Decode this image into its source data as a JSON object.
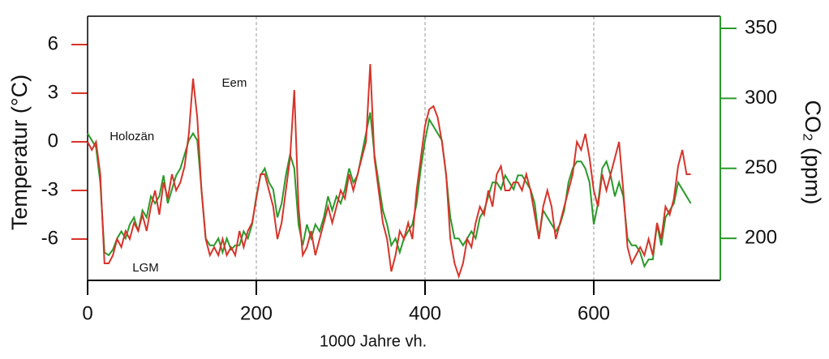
{
  "chart_data": {
    "type": "line",
    "xlabel": "1000 Jahre vh.",
    "ylabel": "Temperatur (°C)",
    "y2label": "CO₂ (ppm)",
    "annotations": [
      {
        "text": "Holozän",
        "x": 5,
        "y": 0.3
      },
      {
        "text": "Eem",
        "x": 138,
        "y": 3.6
      },
      {
        "text": "LGM",
        "x": 32,
        "y": -7.8
      }
    ],
    "xlim": [
      0,
      750
    ],
    "xticks": [
      0,
      200,
      400,
      600
    ],
    "ylim": [
      -8.55,
      7.75
    ],
    "yticks": [
      6,
      3,
      0,
      -3,
      -6
    ],
    "y2lim": [
      170,
      358.7
    ],
    "y2ticks": [
      350,
      300,
      250,
      200
    ],
    "grid": true,
    "x": [
      0,
      5,
      10,
      15,
      20,
      25,
      30,
      35,
      40,
      45,
      50,
      55,
      60,
      65,
      70,
      75,
      80,
      85,
      90,
      95,
      100,
      105,
      110,
      115,
      120,
      125,
      130,
      135,
      140,
      145,
      150,
      155,
      160,
      165,
      170,
      175,
      180,
      185,
      190,
      195,
      200,
      205,
      210,
      215,
      220,
      225,
      230,
      235,
      240,
      245,
      250,
      255,
      260,
      265,
      270,
      275,
      280,
      285,
      290,
      295,
      300,
      305,
      310,
      315,
      320,
      325,
      330,
      335,
      340,
      345,
      350,
      355,
      360,
      365,
      370,
      375,
      380,
      385,
      390,
      395,
      400,
      405,
      410,
      415,
      420,
      425,
      430,
      435,
      440,
      445,
      450,
      455,
      460,
      465,
      470,
      475,
      480,
      485,
      490,
      495,
      500,
      505,
      510,
      515,
      520,
      525,
      530,
      535,
      540,
      545,
      550,
      555,
      560,
      565,
      570,
      575,
      580,
      585,
      590,
      595,
      600,
      605,
      610,
      615,
      620,
      625,
      630,
      635,
      640,
      645,
      650,
      655,
      660,
      665,
      670,
      675,
      680,
      685,
      690,
      695,
      700,
      705,
      710,
      715
    ],
    "series": [
      {
        "name": "Temperatur",
        "color": "#d7342a",
        "values": [
          0,
          -0.5,
          0,
          -2,
          -7.5,
          -7.5,
          -7,
          -6,
          -6.5,
          -5.5,
          -6,
          -5,
          -5.5,
          -4.5,
          -5.5,
          -4,
          -3,
          -4.5,
          -2.5,
          -3.5,
          -2,
          -3,
          -2.5,
          -1.5,
          0.5,
          3.9,
          1.5,
          -3,
          -6,
          -7,
          -6.5,
          -7,
          -6,
          -7,
          -6.5,
          -7,
          -5.5,
          -6.5,
          -5.5,
          -5,
          -3.5,
          -2,
          -2,
          -3,
          -4,
          -6,
          -5,
          -3,
          -1,
          3.2,
          -4,
          -7,
          -6.5,
          -5.5,
          -7,
          -6,
          -5,
          -4,
          -5,
          -4,
          -3,
          -3.5,
          -2,
          -3,
          -2,
          -1,
          0,
          4.8,
          -1,
          -3,
          -5,
          -6,
          -8,
          -7,
          -5.5,
          -6,
          -5,
          -6,
          -3,
          -1,
          1,
          2,
          2.2,
          1.5,
          0,
          -2,
          -6,
          -7.5,
          -8.3,
          -7.5,
          -6,
          -6.5,
          -5,
          -4,
          -4.5,
          -3,
          -4,
          -2,
          -1.5,
          -3,
          -3,
          -2.5,
          -2.5,
          -3,
          -2,
          -3,
          -4.5,
          -6,
          -4,
          -3,
          -4,
          -6,
          -5,
          -4,
          -3,
          -2,
          0,
          -0.5,
          0.5,
          -1,
          -3,
          -4,
          -2,
          -3,
          -2,
          -1,
          0,
          -3,
          -6.5,
          -7.5,
          -7,
          -6.5,
          -7,
          -6,
          -7,
          -5,
          -6,
          -4,
          -4.5,
          -3.5,
          -1.5,
          -0.5,
          -2,
          -2
        ]
      },
      {
        "name": "CO₂",
        "color": "#2a9a2a",
        "axis": "y2",
        "values": [
          275,
          270,
          265,
          240,
          190,
          188,
          192,
          200,
          205,
          200,
          210,
          215,
          205,
          220,
          215,
          230,
          225,
          230,
          245,
          225,
          235,
          245,
          250,
          260,
          270,
          275,
          270,
          235,
          200,
          195,
          195,
          200,
          190,
          200,
          192,
          195,
          195,
          205,
          200,
          210,
          230,
          245,
          250,
          240,
          235,
          215,
          225,
          245,
          260,
          250,
          210,
          195,
          210,
          200,
          210,
          205,
          215,
          230,
          220,
          230,
          225,
          235,
          250,
          240,
          245,
          260,
          275,
          290,
          260,
          240,
          220,
          210,
          195,
          200,
          190,
          200,
          205,
          210,
          225,
          250,
          270,
          285,
          280,
          275,
          270,
          245,
          215,
          200,
          200,
          195,
          200,
          205,
          200,
          215,
          220,
          230,
          240,
          240,
          235,
          245,
          240,
          235,
          245,
          245,
          240,
          235,
          225,
          200,
          220,
          215,
          210,
          205,
          210,
          220,
          240,
          250,
          255,
          255,
          250,
          240,
          210,
          225,
          250,
          255,
          245,
          230,
          240,
          230,
          200,
          195,
          195,
          190,
          180,
          185,
          185,
          210,
          195,
          215,
          220,
          225,
          240,
          235,
          230,
          225
        ]
      }
    ]
  }
}
